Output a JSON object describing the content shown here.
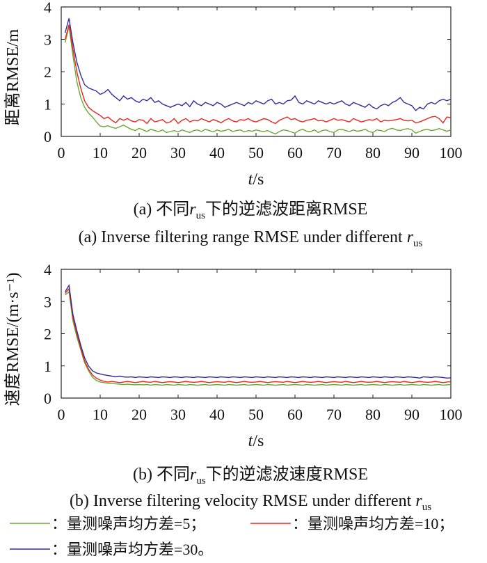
{
  "chart_data": [
    {
      "type": "line",
      "ylabel": "距离RMSE/m",
      "xlabel_var": "t",
      "xlabel_unit": "/s",
      "caption_cn_prefix": "(a) 不同",
      "caption_cn_suffix": "下的逆滤波距离RMSE",
      "caption_en_prefix": "(a) Inverse filtering range RMSE under different ",
      "subscript": "us",
      "r_symbol": "r",
      "xlim": [
        0,
        100
      ],
      "ylim": [
        0,
        4
      ],
      "xticks": [
        0,
        10,
        20,
        30,
        40,
        50,
        60,
        70,
        80,
        90,
        100
      ],
      "yticks": [
        0,
        1,
        2,
        3,
        4
      ],
      "x": [
        1,
        2,
        3,
        4,
        5,
        6,
        7,
        8,
        9,
        10,
        11,
        12,
        13,
        14,
        15,
        16,
        17,
        18,
        19,
        20,
        21,
        22,
        23,
        24,
        25,
        26,
        27,
        28,
        29,
        30,
        31,
        32,
        33,
        34,
        35,
        36,
        37,
        38,
        39,
        40,
        41,
        42,
        43,
        44,
        45,
        46,
        47,
        48,
        49,
        50,
        51,
        52,
        53,
        54,
        55,
        56,
        57,
        58,
        59,
        60,
        61,
        62,
        63,
        64,
        65,
        66,
        67,
        68,
        69,
        70,
        71,
        72,
        73,
        74,
        75,
        76,
        77,
        78,
        79,
        80,
        81,
        82,
        83,
        84,
        85,
        86,
        87,
        88,
        89,
        90,
        91,
        92,
        93,
        94,
        95,
        96,
        97,
        98,
        99,
        100
      ],
      "series": [
        {
          "name": "量测噪声均方差=5",
          "color": "#6aa832",
          "values": [
            2.9,
            3.4,
            2.5,
            1.7,
            1.2,
            0.9,
            0.72,
            0.6,
            0.45,
            0.32,
            0.3,
            0.33,
            0.28,
            0.25,
            0.3,
            0.35,
            0.28,
            0.22,
            0.18,
            0.25,
            0.2,
            0.15,
            0.22,
            0.18,
            0.15,
            0.2,
            0.12,
            0.15,
            0.18,
            0.14,
            0.2,
            0.16,
            0.12,
            0.18,
            0.2,
            0.15,
            0.22,
            0.18,
            0.14,
            0.2,
            0.16,
            0.18,
            0.22,
            0.15,
            0.18,
            0.2,
            0.14,
            0.18,
            0.16,
            0.2,
            0.17,
            0.15,
            0.18,
            0.12,
            0.08,
            0.15,
            0.2,
            0.18,
            0.14,
            0.1,
            0.18,
            0.22,
            0.16,
            0.15,
            0.2,
            0.12,
            0.18,
            0.2,
            0.15,
            0.12,
            0.2,
            0.22,
            0.18,
            0.15,
            0.2,
            0.16,
            0.18,
            0.22,
            0.15,
            0.12,
            0.2,
            0.18,
            0.15,
            0.22,
            0.25,
            0.2,
            0.18,
            0.22,
            0.24,
            0.2,
            0.1,
            0.15,
            0.2,
            0.22,
            0.18,
            0.2,
            0.24,
            0.2,
            0.16,
            0.2
          ]
        },
        {
          "name": "量测噪声均方差=10",
          "color": "#e8261e",
          "values": [
            3.0,
            3.45,
            2.7,
            2.0,
            1.5,
            1.1,
            0.9,
            0.8,
            0.72,
            0.65,
            0.55,
            0.6,
            0.5,
            0.42,
            0.55,
            0.5,
            0.55,
            0.48,
            0.45,
            0.52,
            0.5,
            0.4,
            0.55,
            0.45,
            0.48,
            0.52,
            0.42,
            0.45,
            0.55,
            0.4,
            0.5,
            0.55,
            0.45,
            0.5,
            0.48,
            0.55,
            0.5,
            0.45,
            0.52,
            0.48,
            0.42,
            0.5,
            0.55,
            0.48,
            0.45,
            0.52,
            0.5,
            0.55,
            0.48,
            0.45,
            0.5,
            0.55,
            0.52,
            0.45,
            0.4,
            0.5,
            0.55,
            0.6,
            0.52,
            0.55,
            0.48,
            0.45,
            0.5,
            0.52,
            0.55,
            0.48,
            0.5,
            0.45,
            0.5,
            0.55,
            0.5,
            0.52,
            0.48,
            0.45,
            0.55,
            0.5,
            0.45,
            0.48,
            0.52,
            0.5,
            0.55,
            0.45,
            0.5,
            0.48,
            0.5,
            0.52,
            0.55,
            0.5,
            0.48,
            0.5,
            0.42,
            0.45,
            0.5,
            0.55,
            0.6,
            0.62,
            0.55,
            0.42,
            0.6,
            0.58
          ]
        },
        {
          "name": "量测噪声均方差=30",
          "color": "#2e2e9a",
          "values": [
            3.2,
            3.65,
            2.9,
            2.3,
            1.9,
            1.6,
            1.5,
            1.45,
            1.4,
            1.3,
            1.35,
            1.45,
            1.3,
            1.2,
            1.1,
            1.25,
            1.15,
            1.2,
            1.1,
            1.05,
            1.15,
            1.1,
            1.2,
            1.05,
            1.1,
            1.0,
            0.95,
            0.9,
            0.95,
            1.0,
            0.95,
            1.05,
            0.92,
            1.1,
            1.0,
            0.95,
            1.05,
            1.0,
            0.95,
            1.05,
            1.0,
            0.9,
            0.95,
            1.0,
            1.05,
            1.0,
            0.95,
            1.05,
            1.0,
            1.1,
            1.05,
            1.0,
            1.1,
            1.15,
            1.0,
            1.05,
            1.0,
            1.1,
            1.12,
            1.25,
            1.05,
            1.0,
            1.1,
            1.05,
            1.0,
            1.1,
            1.05,
            1.0,
            1.05,
            1.0,
            1.05,
            1.1,
            1.0,
            0.95,
            1.05,
            1.0,
            0.95,
            0.9,
            1.0,
            0.9,
            0.85,
            0.95,
            1.0,
            0.95,
            1.05,
            1.1,
            1.2,
            1.05,
            1.0,
            0.95,
            0.8,
            0.9,
            0.85,
            1.0,
            1.05,
            1.0,
            1.1,
            1.15,
            1.1,
            1.15
          ]
        }
      ]
    },
    {
      "type": "line",
      "ylabel": "速度RMSE/(m·s⁻¹)",
      "xlabel_var": "t",
      "xlabel_unit": "/s",
      "caption_cn_prefix": "(b) 不同",
      "caption_cn_suffix": "下的逆滤波速度RMSE",
      "caption_en_prefix": "(b) Inverse filtering velocity RMSE under different ",
      "subscript": "us",
      "r_symbol": "r",
      "xlim": [
        0,
        100
      ],
      "ylim": [
        0,
        4
      ],
      "xticks": [
        0,
        10,
        20,
        30,
        40,
        50,
        60,
        70,
        80,
        90,
        100
      ],
      "yticks": [
        0,
        1,
        2,
        3,
        4
      ],
      "x": [
        1,
        2,
        3,
        4,
        5,
        6,
        7,
        8,
        9,
        10,
        11,
        12,
        13,
        14,
        15,
        16,
        17,
        18,
        19,
        20,
        21,
        22,
        23,
        24,
        25,
        26,
        27,
        28,
        29,
        30,
        31,
        32,
        33,
        34,
        35,
        36,
        37,
        38,
        39,
        40,
        41,
        42,
        43,
        44,
        45,
        46,
        47,
        48,
        49,
        50,
        51,
        52,
        53,
        54,
        55,
        56,
        57,
        58,
        59,
        60,
        61,
        62,
        63,
        64,
        65,
        66,
        67,
        68,
        69,
        70,
        71,
        72,
        73,
        74,
        75,
        76,
        77,
        78,
        79,
        80,
        81,
        82,
        83,
        84,
        85,
        86,
        87,
        88,
        89,
        90,
        91,
        92,
        93,
        94,
        95,
        96,
        97,
        98,
        99,
        100
      ],
      "series": [
        {
          "name": "量测噪声均方差=5",
          "color": "#6aa832",
          "values": [
            3.2,
            3.3,
            2.4,
            1.9,
            1.5,
            1.1,
            0.85,
            0.65,
            0.55,
            0.5,
            0.48,
            0.46,
            0.45,
            0.44,
            0.43,
            0.42,
            0.43,
            0.42,
            0.41,
            0.42,
            0.41,
            0.42,
            0.4,
            0.42,
            0.41,
            0.4,
            0.42,
            0.41,
            0.4,
            0.42,
            0.41,
            0.4,
            0.42,
            0.41,
            0.4,
            0.41,
            0.42,
            0.4,
            0.41,
            0.42,
            0.41,
            0.4,
            0.42,
            0.41,
            0.4,
            0.41,
            0.42,
            0.4,
            0.41,
            0.42,
            0.41,
            0.4,
            0.42,
            0.41,
            0.4,
            0.41,
            0.42,
            0.4,
            0.41,
            0.42,
            0.41,
            0.4,
            0.42,
            0.41,
            0.4,
            0.41,
            0.42,
            0.4,
            0.41,
            0.42,
            0.41,
            0.4,
            0.42,
            0.41,
            0.4,
            0.41,
            0.42,
            0.4,
            0.41,
            0.42,
            0.41,
            0.4,
            0.42,
            0.41,
            0.4,
            0.41,
            0.42,
            0.4,
            0.41,
            0.42,
            0.41,
            0.4,
            0.42,
            0.41,
            0.4,
            0.41,
            0.42,
            0.4,
            0.41,
            0.42
          ]
        },
        {
          "name": "量测噪声均方差=10",
          "color": "#e8261e",
          "values": [
            3.25,
            3.4,
            2.5,
            2.0,
            1.55,
            1.15,
            0.9,
            0.72,
            0.62,
            0.56,
            0.52,
            0.5,
            0.52,
            0.5,
            0.48,
            0.5,
            0.52,
            0.5,
            0.48,
            0.5,
            0.52,
            0.5,
            0.49,
            0.52,
            0.5,
            0.48,
            0.5,
            0.51,
            0.5,
            0.48,
            0.5,
            0.52,
            0.5,
            0.49,
            0.5,
            0.52,
            0.5,
            0.48,
            0.5,
            0.51,
            0.5,
            0.49,
            0.52,
            0.5,
            0.48,
            0.5,
            0.52,
            0.5,
            0.49,
            0.5,
            0.52,
            0.5,
            0.48,
            0.5,
            0.51,
            0.5,
            0.49,
            0.52,
            0.5,
            0.48,
            0.5,
            0.52,
            0.5,
            0.49,
            0.5,
            0.52,
            0.5,
            0.48,
            0.5,
            0.51,
            0.5,
            0.49,
            0.52,
            0.5,
            0.48,
            0.5,
            0.52,
            0.5,
            0.49,
            0.5,
            0.52,
            0.5,
            0.48,
            0.5,
            0.51,
            0.5,
            0.49,
            0.52,
            0.5,
            0.48,
            0.5,
            0.52,
            0.5,
            0.49,
            0.5,
            0.52,
            0.5,
            0.48,
            0.5,
            0.51
          ]
        },
        {
          "name": "量测噪声均方差=30",
          "color": "#2e2e9a",
          "values": [
            3.3,
            3.5,
            2.6,
            2.1,
            1.65,
            1.25,
            1.0,
            0.85,
            0.78,
            0.75,
            0.72,
            0.7,
            0.68,
            0.66,
            0.68,
            0.66,
            0.65,
            0.66,
            0.64,
            0.66,
            0.65,
            0.64,
            0.66,
            0.65,
            0.64,
            0.66,
            0.65,
            0.64,
            0.66,
            0.65,
            0.64,
            0.66,
            0.65,
            0.64,
            0.66,
            0.65,
            0.64,
            0.66,
            0.65,
            0.64,
            0.66,
            0.65,
            0.64,
            0.66,
            0.65,
            0.64,
            0.66,
            0.65,
            0.64,
            0.66,
            0.65,
            0.64,
            0.66,
            0.65,
            0.64,
            0.66,
            0.65,
            0.64,
            0.66,
            0.65,
            0.64,
            0.66,
            0.65,
            0.64,
            0.66,
            0.65,
            0.64,
            0.66,
            0.65,
            0.64,
            0.66,
            0.65,
            0.64,
            0.66,
            0.65,
            0.64,
            0.66,
            0.65,
            0.64,
            0.66,
            0.65,
            0.64,
            0.66,
            0.65,
            0.64,
            0.66,
            0.65,
            0.64,
            0.66,
            0.65,
            0.64,
            0.62,
            0.66,
            0.65,
            0.64,
            0.66,
            0.65,
            0.64,
            0.62,
            0.63
          ]
        }
      ]
    }
  ],
  "legend": {
    "items": [
      {
        "label": "：量测噪声均方差=5；",
        "color": "#6aa832"
      },
      {
        "label": "：量测噪声均方差=10；",
        "color": "#e8261e"
      },
      {
        "label": "：量测噪声均方差=30。",
        "color": "#2e2e9a"
      }
    ]
  }
}
